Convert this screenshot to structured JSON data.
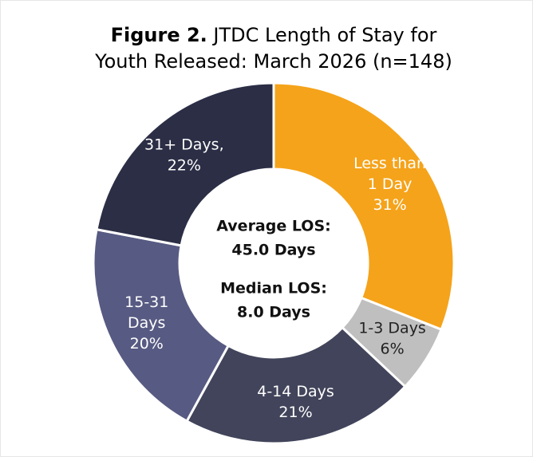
{
  "chart_data": {
    "type": "donut",
    "figure_label": "Figure 2.",
    "title_lines": [
      "JTDC Length of Stay for",
      "Youth Released: March 2026 (n=148)"
    ],
    "categories": [
      [
        "Less than",
        "1 Day"
      ],
      [
        "1-3 Days"
      ],
      [
        "4-14 Days"
      ],
      [
        "15-31",
        "Days"
      ],
      [
        "31+ Days,"
      ]
    ],
    "values": [
      31,
      6,
      21,
      20,
      22
    ],
    "value_labels": [
      "31%",
      "6%",
      "21%",
      "20%",
      "22%"
    ],
    "colors": [
      "#F5A31A",
      "#BFBFBF",
      "#41445A",
      "#575A82",
      "#2B2E45"
    ],
    "label_colors": [
      "#ffffff",
      "#222222",
      "#ffffff",
      "#ffffff",
      "#ffffff"
    ],
    "annotations": [
      "Average LOS:",
      "45.0 Days",
      "Median LOS:",
      "8.0 Days"
    ]
  }
}
